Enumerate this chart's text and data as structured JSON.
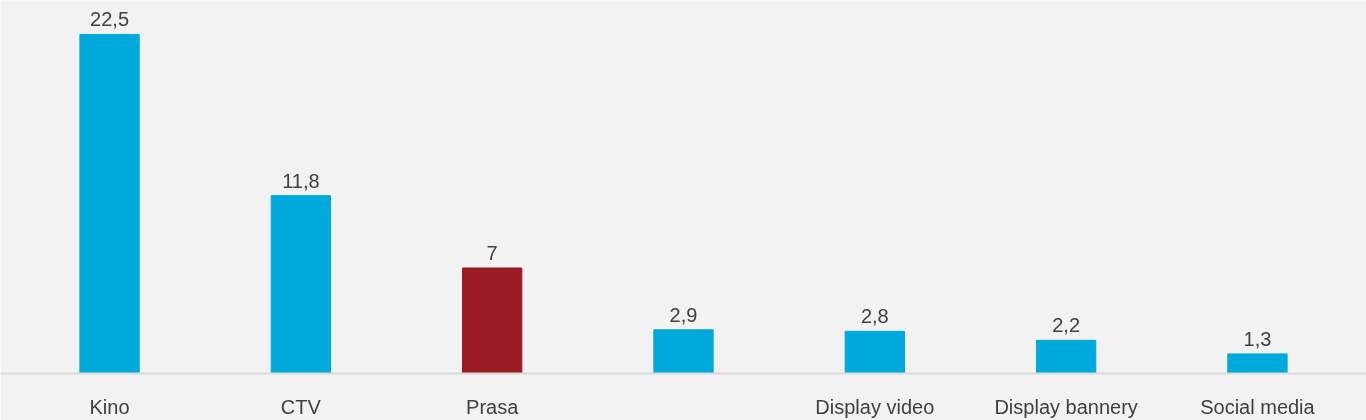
{
  "chart_data": {
    "type": "bar",
    "categories": [
      "Kino",
      "CTV",
      "Prasa",
      null,
      "Display video",
      "Display bannery",
      "Social media"
    ],
    "values": [
      22.5,
      11.8,
      7,
      2.9,
      2.8,
      2.2,
      1.3
    ],
    "colors": [
      "#00a9dc",
      "#00a9dc",
      "#9b1b24",
      "#00a9dc",
      "#00a9dc",
      "#00a9dc",
      "#00a9dc"
    ],
    "value_labels": [
      "22,5",
      "11,8",
      "7",
      "2,9",
      "2,8",
      "2,2",
      "1,3"
    ],
    "grid": false
  }
}
